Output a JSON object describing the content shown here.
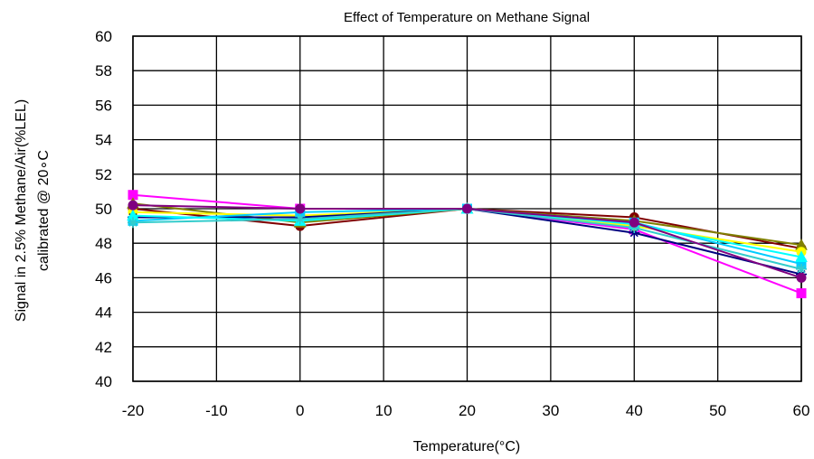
{
  "chart_data": {
    "type": "line",
    "title": "Effect of Temperature on Methane Signal",
    "xlabel": "Temperature(°C)",
    "ylabel_line1": "Signal in 2.5% Methane/Air(%LEL)",
    "ylabel_line2": "calibrated @ 20∘C",
    "xlim": [
      -20,
      60
    ],
    "ylim": [
      40,
      60
    ],
    "x_ticks": [
      -20,
      -10,
      0,
      10,
      20,
      30,
      40,
      50,
      60
    ],
    "y_ticks": [
      40,
      42,
      44,
      46,
      48,
      50,
      52,
      54,
      56,
      58,
      60
    ],
    "grid": true,
    "legend": "none",
    "x": [
      -20,
      0,
      20,
      40,
      60
    ],
    "series": [
      {
        "values": [
          50.8,
          50.0,
          50.0,
          48.8,
          45.1
        ],
        "color": "#ff00ff",
        "marker": "square"
      },
      {
        "values": [
          50.0,
          49.0,
          50.0,
          49.5,
          47.7
        ],
        "color": "#800000",
        "marker": "circle"
      },
      {
        "values": [
          50.3,
          49.2,
          50.0,
          49.3,
          47.9
        ],
        "color": "#808000",
        "marker": "triangle"
      },
      {
        "values": [
          49.8,
          49.6,
          50.0,
          49.0,
          47.5
        ],
        "color": "#ffff00",
        "marker": "circle"
      },
      {
        "values": [
          49.5,
          49.5,
          50.0,
          48.6,
          46.2
        ],
        "color": "#000080",
        "marker": "star"
      },
      {
        "values": [
          49.3,
          49.8,
          50.0,
          49.2,
          46.8
        ],
        "color": "#00ccff",
        "marker": "square"
      },
      {
        "values": [
          49.6,
          49.3,
          50.0,
          49.1,
          47.2
        ],
        "color": "#00ffff",
        "marker": "triangle"
      },
      {
        "values": [
          49.2,
          49.4,
          50.0,
          48.9,
          46.5
        ],
        "color": "#33cccc",
        "marker": "star"
      },
      {
        "values": [
          50.2,
          50.0,
          50.0,
          49.2,
          46.0
        ],
        "color": "#800080",
        "marker": "circle"
      }
    ]
  }
}
